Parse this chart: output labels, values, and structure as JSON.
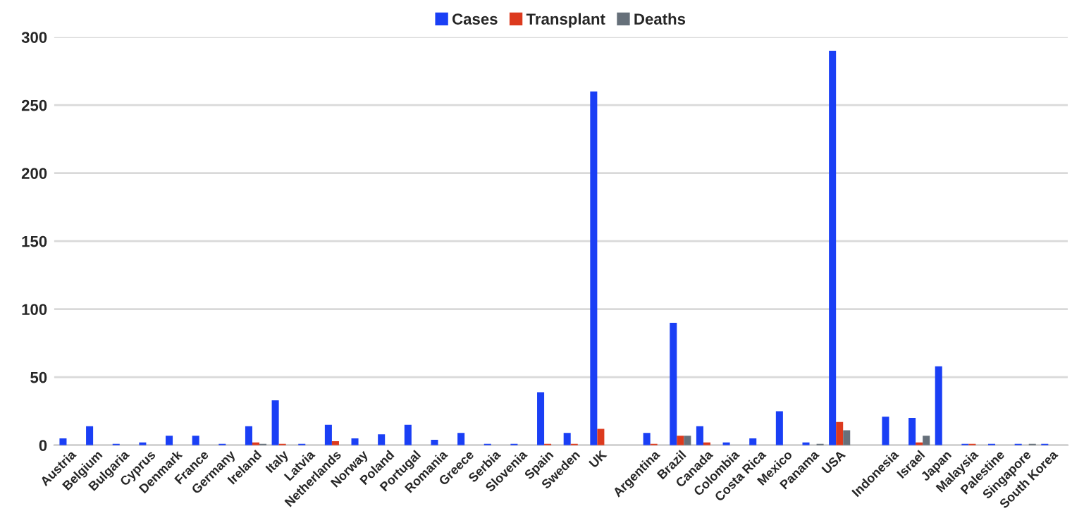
{
  "chart_data": {
    "type": "bar",
    "categories": [
      "Austria",
      "Belgium",
      "Bulgaria",
      "Cyprus",
      "Denmark",
      "France",
      "Germany",
      "Ireland",
      "Italy",
      "Latvia",
      "Netherlands",
      "Norway",
      "Poland",
      "Portugal",
      "Romania",
      "Greece",
      "Serbia",
      "Slovenia",
      "Spain",
      "Sweden",
      "UK",
      null,
      "Argentina",
      "Brazil",
      "Canada",
      "Colombia",
      "Costa Rica",
      "Mexico",
      "Panama",
      "USA",
      null,
      "Indonesia",
      "Israel",
      "Japan",
      "Malaysia",
      "Palestine",
      "Singapore",
      "South Korea"
    ],
    "series": [
      {
        "name": "Cases",
        "color": "#1a3ff5",
        "values": [
          5,
          14,
          1,
          2,
          7,
          7,
          1,
          14,
          33,
          1,
          15,
          5,
          8,
          15,
          4,
          9,
          1,
          1,
          39,
          9,
          260,
          null,
          9,
          90,
          14,
          2,
          5,
          25,
          2,
          290,
          null,
          21,
          20,
          58,
          1,
          1,
          1,
          1
        ]
      },
      {
        "name": "Transplant",
        "color": "#dc3a1e",
        "values": [
          null,
          null,
          null,
          null,
          null,
          null,
          null,
          2,
          1,
          null,
          3,
          null,
          null,
          null,
          null,
          null,
          null,
          null,
          1,
          1,
          12,
          null,
          1,
          7,
          2,
          null,
          null,
          null,
          null,
          17,
          null,
          null,
          2,
          null,
          1,
          null,
          null,
          null
        ]
      },
      {
        "name": "Deaths",
        "color": "#66707a",
        "values": [
          null,
          null,
          null,
          null,
          null,
          null,
          null,
          1,
          null,
          null,
          null,
          null,
          null,
          null,
          null,
          null,
          null,
          null,
          null,
          null,
          null,
          null,
          null,
          7,
          null,
          null,
          null,
          null,
          1,
          11,
          null,
          null,
          7,
          null,
          null,
          null,
          1,
          null
        ]
      }
    ],
    "ylim": [
      0,
      300
    ],
    "yticks": [
      0,
      50,
      100,
      150,
      200,
      250,
      300
    ],
    "grid": "y",
    "legend": "top"
  }
}
